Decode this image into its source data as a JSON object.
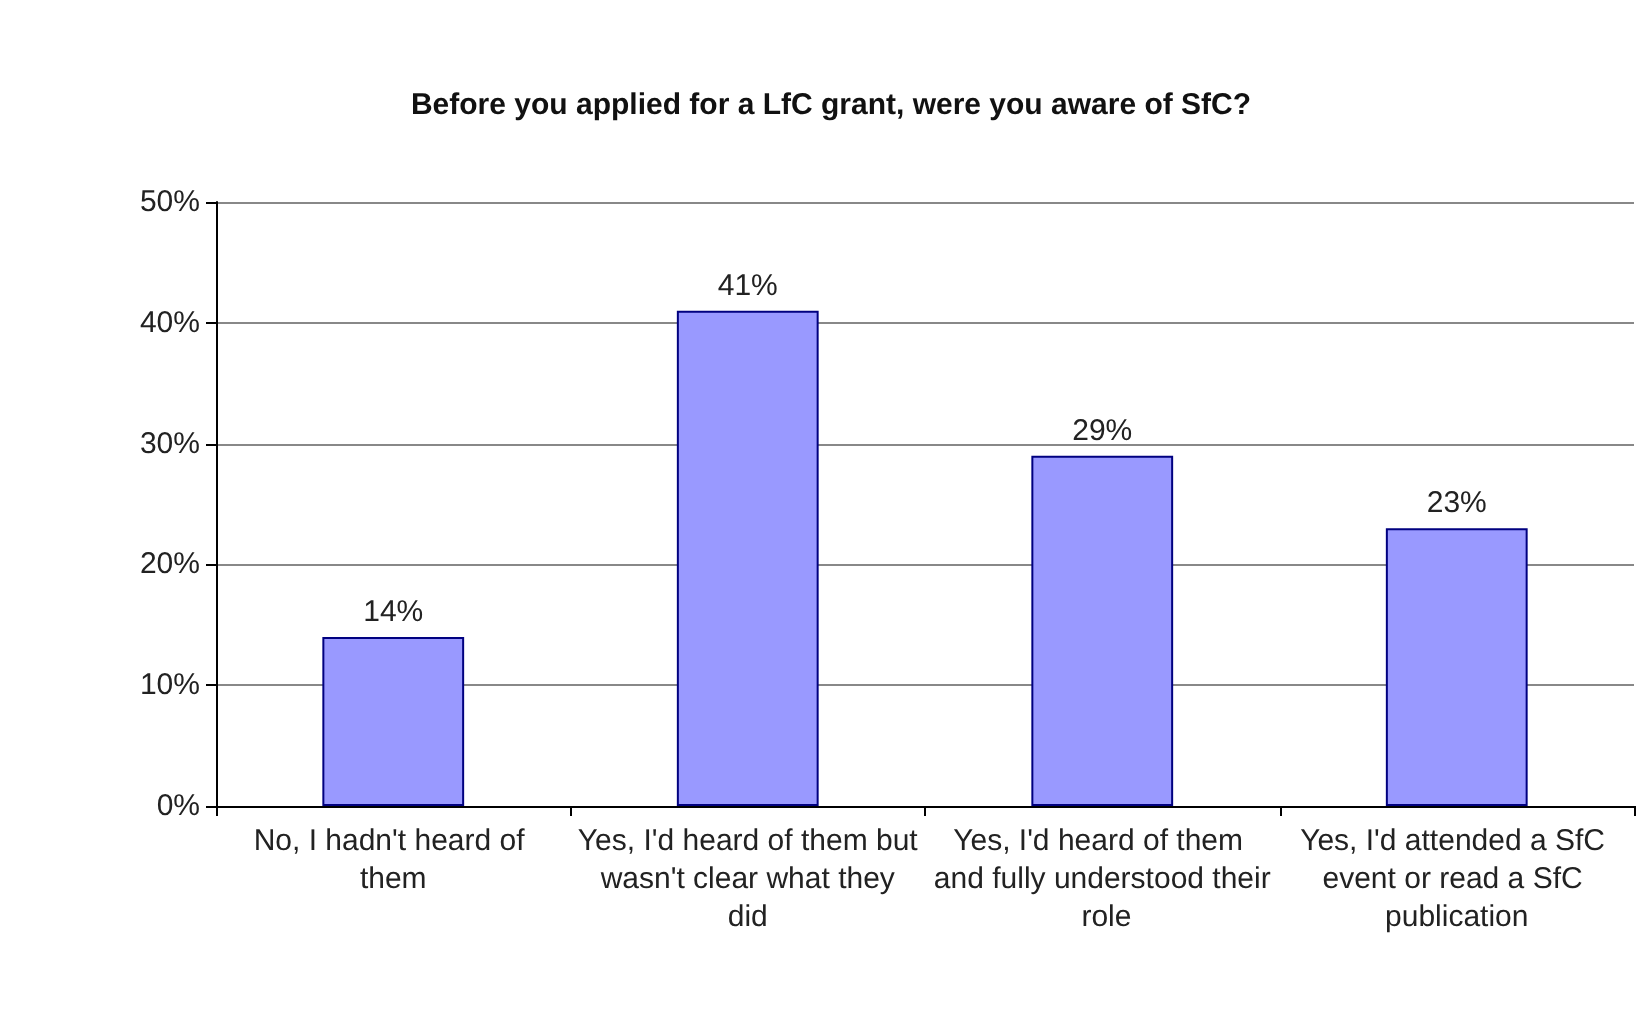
{
  "chart_data": {
    "type": "bar",
    "title": "Before you applied for a LfC grant, were you aware of SfC?",
    "categories": [
      "No, I hadn't heard of them",
      "Yes, I'd heard of them but wasn't clear what they did",
      "Yes, I'd heard of them and fully understood their role",
      "Yes, I'd attended a SfC event or read a SfC publication"
    ],
    "values": [
      14,
      41,
      29,
      23
    ],
    "value_labels": [
      "14%",
      "41%",
      "29%",
      "23%"
    ],
    "color": "#9999ff",
    "ylim": [
      0,
      50
    ],
    "yticks": [
      {
        "value": 0,
        "label": "0%"
      },
      {
        "value": 10,
        "label": "10%"
      },
      {
        "value": 20,
        "label": "20%"
      },
      {
        "value": 30,
        "label": "30%"
      },
      {
        "value": 40,
        "label": "40%"
      },
      {
        "value": 50,
        "label": "50%"
      }
    ],
    "grid": "y"
  }
}
